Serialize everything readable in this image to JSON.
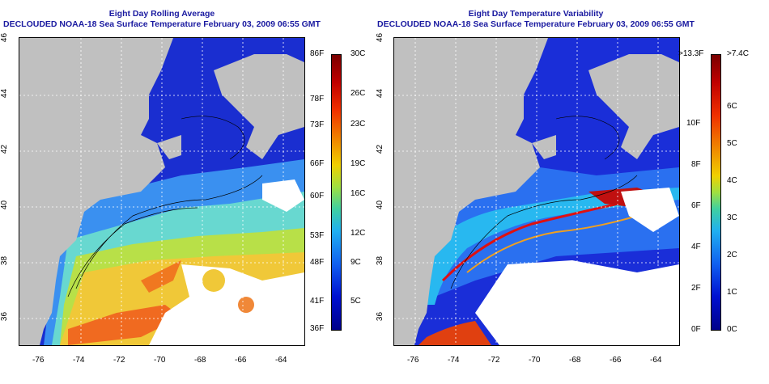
{
  "left_panel": {
    "title_line1": "Eight Day Rolling Average",
    "title_line2": "DECLOUDED NOAA-18 Sea Surface Temperature February 03, 2009 06:55 GMT",
    "x_ticks": [
      "-76",
      "-74",
      "-72",
      "-70",
      "-68",
      "-66",
      "-64"
    ],
    "y_ticks": [
      "36",
      "38",
      "40",
      "42",
      "44",
      "46"
    ],
    "colorbar_left_labels": [
      "86F",
      "78F",
      "73F",
      "66F",
      "60F",
      "53F",
      "48F",
      "41F",
      "36F"
    ],
    "colorbar_right_labels": [
      "30C",
      "26C",
      "23C",
      "19C",
      "16C",
      "12C",
      "9C",
      "5C"
    ]
  },
  "right_panel": {
    "title_line1": "Eight Day Temperature Variability",
    "title_line2": "DECLOUDED NOAA-18 Sea Surface Temperature February 03, 2009 06:55 GMT",
    "x_ticks": [
      "-76",
      "-74",
      "-72",
      "-70",
      "-68",
      "-66",
      "-64"
    ],
    "y_ticks": [
      "36",
      "38",
      "40",
      "42",
      "44",
      "46"
    ],
    "colorbar_left_labels": [
      ">13.3F",
      "10F",
      "8F",
      "6F",
      "4F",
      "2F",
      "0F"
    ],
    "colorbar_right_labels": [
      ">7.4C",
      "6C",
      "5C",
      "4C",
      "3C",
      "2C",
      "1C",
      "0C"
    ]
  },
  "colors": {
    "land": "#c0c0c0",
    "cloud": "#ffffff",
    "title_blue": "#1a1aa0"
  }
}
